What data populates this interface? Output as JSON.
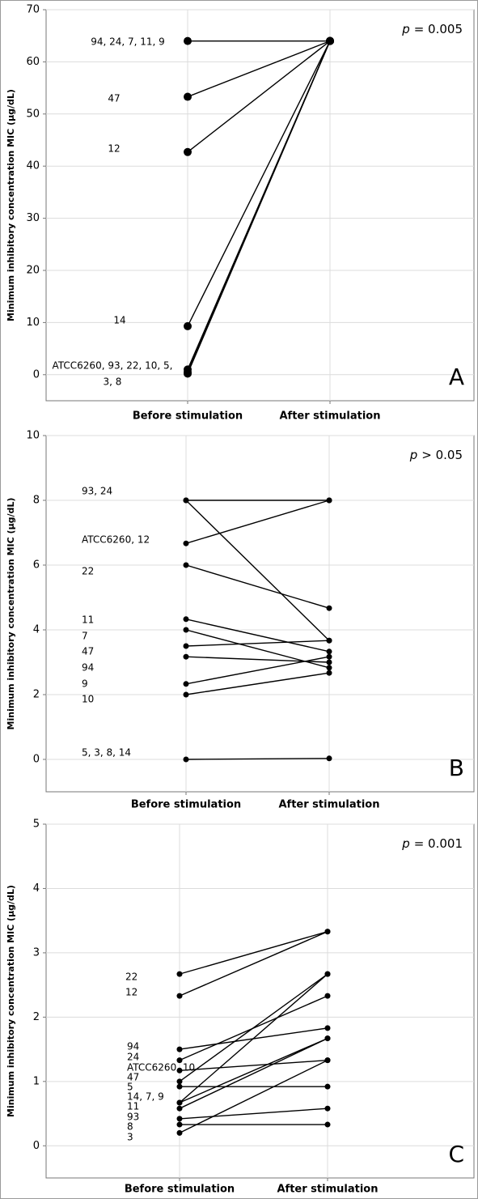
{
  "chart_data": [
    {
      "type": "line",
      "categories": [
        "Before stimulation",
        "After stimulation"
      ],
      "y_label": "Minimum inhibitory concentration  MIC (μg/dL)",
      "ylim": [
        -5,
        70
      ],
      "yticks": [
        0,
        10,
        20,
        30,
        40,
        50,
        60,
        70
      ],
      "grid": true,
      "color": "#000000",
      "p_label": "p",
      "p_value": "= 0.005",
      "panel_label": "A",
      "series": [
        {
          "values": [
            64,
            64
          ]
        },
        {
          "values": [
            53.3,
            64
          ]
        },
        {
          "values": [
            42.7,
            64
          ]
        },
        {
          "values": [
            9.3,
            64
          ]
        },
        {
          "values": [
            1,
            64
          ]
        },
        {
          "values": [
            0.5,
            64
          ]
        },
        {
          "values": [
            0.2,
            64
          ]
        }
      ],
      "annotations": [
        "94, 24, 7, 11, 9",
        "47",
        "12",
        "14",
        "ATCC6260, 93, 22, 10, 5,",
        "3, 8"
      ]
    },
    {
      "type": "line",
      "categories": [
        "Before stimulation",
        "After stimulation"
      ],
      "y_label": "Minimum inhibitory concentration  MIC (μg/dL)",
      "ylim": [
        -1,
        10
      ],
      "yticks": [
        0,
        2,
        4,
        6,
        8,
        10
      ],
      "grid": true,
      "color": "#000000",
      "p_label": "p",
      "p_value": "> 0.05",
      "panel_label": "B",
      "series": [
        {
          "values": [
            8,
            8
          ]
        },
        {
          "values": [
            8,
            3.67
          ]
        },
        {
          "values": [
            6.67,
            8
          ]
        },
        {
          "values": [
            6,
            4.67
          ]
        },
        {
          "values": [
            4.33,
            3.33
          ]
        },
        {
          "values": [
            4,
            2.83
          ]
        },
        {
          "values": [
            3.5,
            3.67
          ]
        },
        {
          "values": [
            3.17,
            3
          ]
        },
        {
          "values": [
            2.33,
            3.17
          ]
        },
        {
          "values": [
            2,
            2.67
          ]
        },
        {
          "values": [
            0,
            0.03
          ]
        }
      ],
      "annotations": [
        "93, 24",
        "ATCC6260, 12",
        "22",
        "11",
        "7",
        "47",
        "94",
        "9",
        "10",
        "5, 3, 8, 14"
      ]
    },
    {
      "type": "line",
      "categories": [
        "Before stimulation",
        "After stimulation"
      ],
      "y_label": "Minimum inhibitory concentration  MIC (μg/dL)",
      "ylim": [
        -0.5,
        5
      ],
      "yticks": [
        0,
        1,
        2,
        3,
        4,
        5
      ],
      "grid": true,
      "color": "#000000",
      "p_label": "p",
      "p_value": "= 0.001",
      "panel_label": "C",
      "series": [
        {
          "values": [
            2.67,
            3.33
          ]
        },
        {
          "values": [
            2.33,
            3.33
          ]
        },
        {
          "values": [
            1.5,
            1.83
          ]
        },
        {
          "values": [
            1.33,
            2.33
          ]
        },
        {
          "values": [
            1.17,
            1.33
          ]
        },
        {
          "values": [
            1,
            2.67
          ]
        },
        {
          "values": [
            0.92,
            0.92
          ]
        },
        {
          "values": [
            0.67,
            2.67
          ]
        },
        {
          "values": [
            0.58,
            1.67
          ]
        },
        {
          "values": [
            0.42,
            0.58
          ]
        },
        {
          "values": [
            0.33,
            0.33
          ]
        },
        {
          "values": [
            0.2,
            1.33
          ]
        },
        {
          "values": [
            0.67,
            1.67
          ]
        }
      ],
      "annotations": [
        "22",
        "12",
        "94",
        "24",
        "ATCC6260, 10",
        "47",
        "5",
        "14, 7, 9",
        "11",
        "93",
        "8",
        "3"
      ]
    }
  ]
}
